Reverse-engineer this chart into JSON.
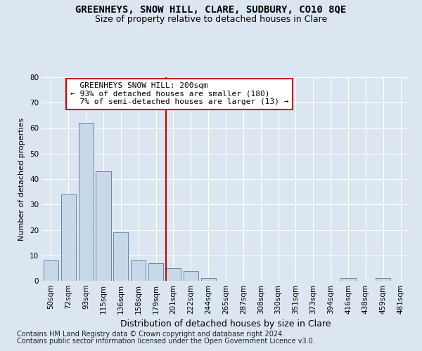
{
  "title": "GREENHEYS, SNOW HILL, CLARE, SUDBURY, CO10 8QE",
  "subtitle": "Size of property relative to detached houses in Clare",
  "xlabel": "Distribution of detached houses by size in Clare",
  "ylabel": "Number of detached properties",
  "categories": [
    "50sqm",
    "72sqm",
    "93sqm",
    "115sqm",
    "136sqm",
    "158sqm",
    "179sqm",
    "201sqm",
    "222sqm",
    "244sqm",
    "265sqm",
    "287sqm",
    "308sqm",
    "330sqm",
    "351sqm",
    "373sqm",
    "394sqm",
    "416sqm",
    "438sqm",
    "459sqm",
    "481sqm"
  ],
  "values": [
    8,
    34,
    62,
    43,
    19,
    8,
    7,
    5,
    4,
    1,
    0,
    0,
    0,
    0,
    0,
    0,
    0,
    1,
    0,
    1,
    0
  ],
  "bar_color": "#c8d8e8",
  "bar_edge_color": "#5a8ab0",
  "vline_index": 7,
  "property_line_label": "GREENHEYS SNOW HILL: 200sqm",
  "pct_smaller": 93,
  "n_smaller": 180,
  "pct_larger": 7,
  "n_larger": 13,
  "annotation_box_facecolor": "#ffffff",
  "annotation_box_edgecolor": "#cc0000",
  "vline_color": "#cc0000",
  "ylim": [
    0,
    80
  ],
  "yticks": [
    0,
    10,
    20,
    30,
    40,
    50,
    60,
    70,
    80
  ],
  "footnote1": "Contains HM Land Registry data © Crown copyright and database right 2024.",
  "footnote2": "Contains public sector information licensed under the Open Government Licence v3.0.",
  "bg_color": "#dce6f0",
  "title_fontsize": 10,
  "subtitle_fontsize": 9,
  "xlabel_fontsize": 9,
  "ylabel_fontsize": 8,
  "tick_fontsize": 7.5,
  "annot_fontsize": 8,
  "footnote_fontsize": 7
}
